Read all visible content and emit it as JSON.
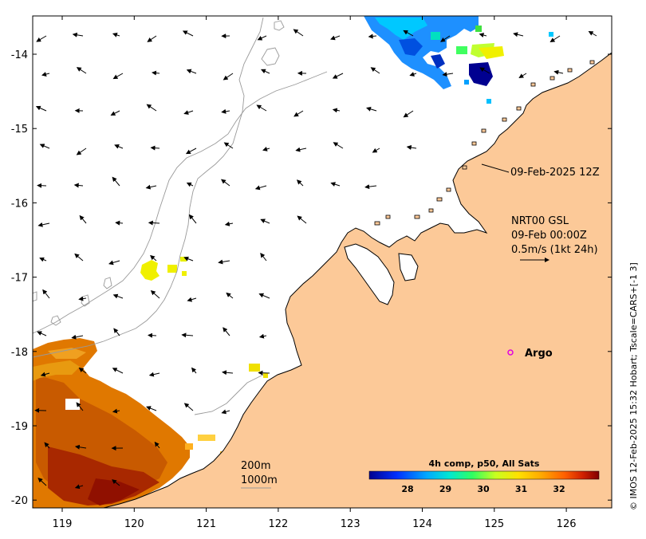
{
  "map": {
    "timestamp": "09-Feb-2025 12Z",
    "current_product": "NRT00 GSL",
    "current_time": "09-Feb 00:00Z",
    "vector_scale": "0.5m/s (1kt 24h)",
    "argo_label": "Argo",
    "isobath_200": "200m",
    "isobath_1000": "1000m",
    "credit": "© IMOS 12-Feb-2025 15:32 Hobart; Tscale=CARS+[-1 3]",
    "colors": {
      "land": "#fcc998",
      "ocean": "#ffffff",
      "argo": "#e000e0",
      "isobath": "#999999"
    }
  },
  "axes": {
    "x_ticks": [
      "119",
      "120",
      "121",
      "122",
      "123",
      "124",
      "125",
      "126"
    ],
    "y_ticks": [
      "-14",
      "-15",
      "-16",
      "-17",
      "-18",
      "-19",
      "-20"
    ]
  },
  "colorbar": {
    "title": "4h comp, p50, All Sats",
    "ticks": [
      "28",
      "29",
      "30",
      "31",
      "32"
    ],
    "colors": [
      "#00008f",
      "#0040ff",
      "#00a0ff",
      "#00e0e0",
      "#40ff80",
      "#c0ff20",
      "#ffe000",
      "#ffa000",
      "#ff6000",
      "#d02000",
      "#800000"
    ]
  }
}
